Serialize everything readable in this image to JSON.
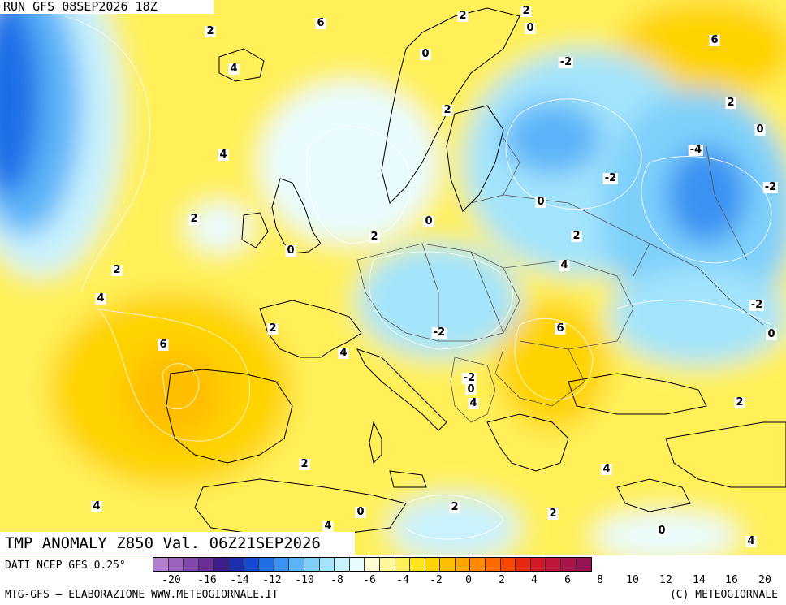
{
  "header": {
    "run": "RUN GFS 08SEP2026 18Z"
  },
  "footer": {
    "title": "TMP ANOMALY Z850 Val. 06Z21SEP2026",
    "data_source": "DATI NCEP GFS 0.25°",
    "credit_left": "MTG-GFS — ELABORAZIONE WWW.METEOGIORNALE.IT",
    "credit_right": "(C) METEOGIORNALE"
  },
  "colorbar": {
    "colors": [
      "#b57fd0",
      "#9b62be",
      "#8148ac",
      "#6a2f96",
      "#3e1e8c",
      "#1d2fae",
      "#1448d4",
      "#1f6ee8",
      "#3a92f2",
      "#5cb4f8",
      "#7ed0fb",
      "#a3e4fc",
      "#c9f2fe",
      "#e8fbff",
      "#fffbd2",
      "#fff79a",
      "#fff05a",
      "#ffe51c",
      "#ffd300",
      "#ffbe00",
      "#ffa500",
      "#ff8a00",
      "#ff6a00",
      "#f84800",
      "#e82810",
      "#d41a2a",
      "#c0163c",
      "#aa1448",
      "#961654"
    ],
    "tick_labels": [
      "-20",
      "-16",
      "-14",
      "-12",
      "-10",
      "-8",
      "-6",
      "-4",
      "-2",
      "0",
      "2",
      "4",
      "6",
      "8",
      "10",
      "12",
      "14",
      "16",
      "20"
    ]
  },
  "contour_labels": [
    "2",
    "6",
    "2",
    "2",
    "0",
    "0",
    "4",
    "-2",
    "6",
    "2",
    "2",
    "-4",
    "4",
    "0",
    "-2",
    "2",
    "-2",
    "0",
    "0",
    "2",
    "0",
    "2",
    "4",
    "-2",
    "6",
    "2",
    "4",
    "2",
    "-2",
    "0",
    "4",
    "6",
    "-2",
    "0",
    "2",
    "4",
    "2",
    "4",
    "4",
    "0",
    "2",
    "2",
    "4",
    "0",
    "4"
  ]
}
